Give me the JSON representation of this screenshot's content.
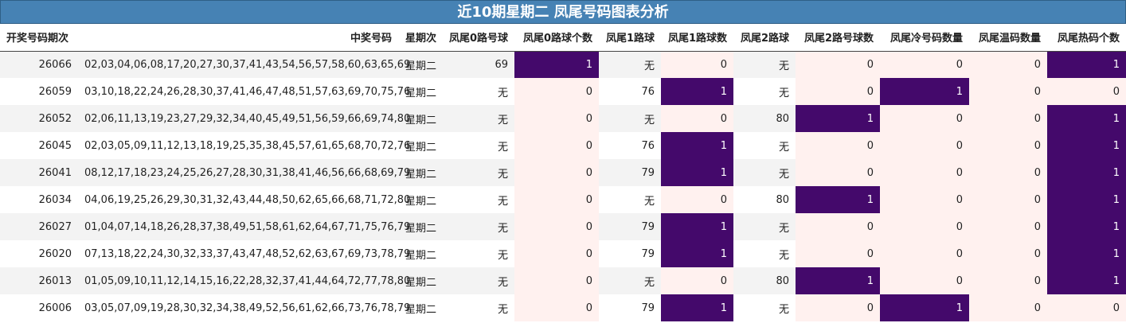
{
  "title": "近10期星期二 凤尾号码图表分析",
  "colors": {
    "title_bg": "#4682b4",
    "hot": "#44096b",
    "light": "#fff1ef",
    "row_stripe": "#f3f3f3"
  },
  "headers": [
    "开奖号码期次",
    "中奖号码",
    "星期次",
    "凤尾0路号球",
    "凤尾0路球个数",
    "凤尾1路球",
    "凤尾1路球数",
    "凤尾2路球",
    "凤尾2路号球数",
    "凤尾冷号码数量",
    "凤尾温码数量",
    "凤尾热码个数"
  ],
  "rows": [
    [
      "26066",
      "02,03,04,06,08,17,20,27,30,37,41,43,54,56,57,58,60,63,65,69",
      "星期二",
      "69",
      "1",
      "无",
      "0",
      "无",
      "0",
      "0",
      "0",
      "1"
    ],
    [
      "26059",
      "03,10,18,22,24,26,28,30,37,41,46,47,48,51,57,63,69,70,75,76",
      "星期二",
      "无",
      "0",
      "76",
      "1",
      "无",
      "0",
      "1",
      "0",
      "0"
    ],
    [
      "26052",
      "02,06,11,13,19,23,27,29,32,34,40,45,49,51,56,59,66,69,74,80",
      "星期二",
      "无",
      "0",
      "无",
      "0",
      "80",
      "1",
      "0",
      "0",
      "1"
    ],
    [
      "26045",
      "02,03,05,09,11,12,13,18,19,25,35,38,45,57,61,65,68,70,72,76",
      "星期二",
      "无",
      "0",
      "76",
      "1",
      "无",
      "0",
      "0",
      "0",
      "1"
    ],
    [
      "26041",
      "08,12,17,18,23,24,25,26,27,28,30,31,38,41,46,56,66,68,69,79",
      "星期二",
      "无",
      "0",
      "79",
      "1",
      "无",
      "0",
      "0",
      "0",
      "1"
    ],
    [
      "26034",
      "04,06,19,25,26,29,30,31,32,43,44,48,50,62,65,66,68,71,72,80",
      "星期二",
      "无",
      "0",
      "无",
      "0",
      "80",
      "1",
      "0",
      "0",
      "1"
    ],
    [
      "26027",
      "01,04,07,14,18,26,28,37,38,49,51,58,61,62,64,67,71,75,76,79",
      "星期二",
      "无",
      "0",
      "79",
      "1",
      "无",
      "0",
      "0",
      "0",
      "1"
    ],
    [
      "26020",
      "07,13,18,22,24,30,32,33,37,43,47,48,52,62,63,67,69,73,78,79",
      "星期二",
      "无",
      "0",
      "79",
      "1",
      "无",
      "0",
      "0",
      "0",
      "1"
    ],
    [
      "26013",
      "01,05,09,10,11,12,14,15,16,22,28,32,37,41,44,64,72,77,78,80",
      "星期二",
      "无",
      "0",
      "无",
      "0",
      "80",
      "1",
      "0",
      "0",
      "1"
    ],
    [
      "26006",
      "03,05,07,09,19,28,30,32,34,38,49,52,56,61,62,66,73,76,78,79",
      "星期二",
      "无",
      "0",
      "79",
      "1",
      "无",
      "0",
      "1",
      "0",
      "0"
    ]
  ]
}
